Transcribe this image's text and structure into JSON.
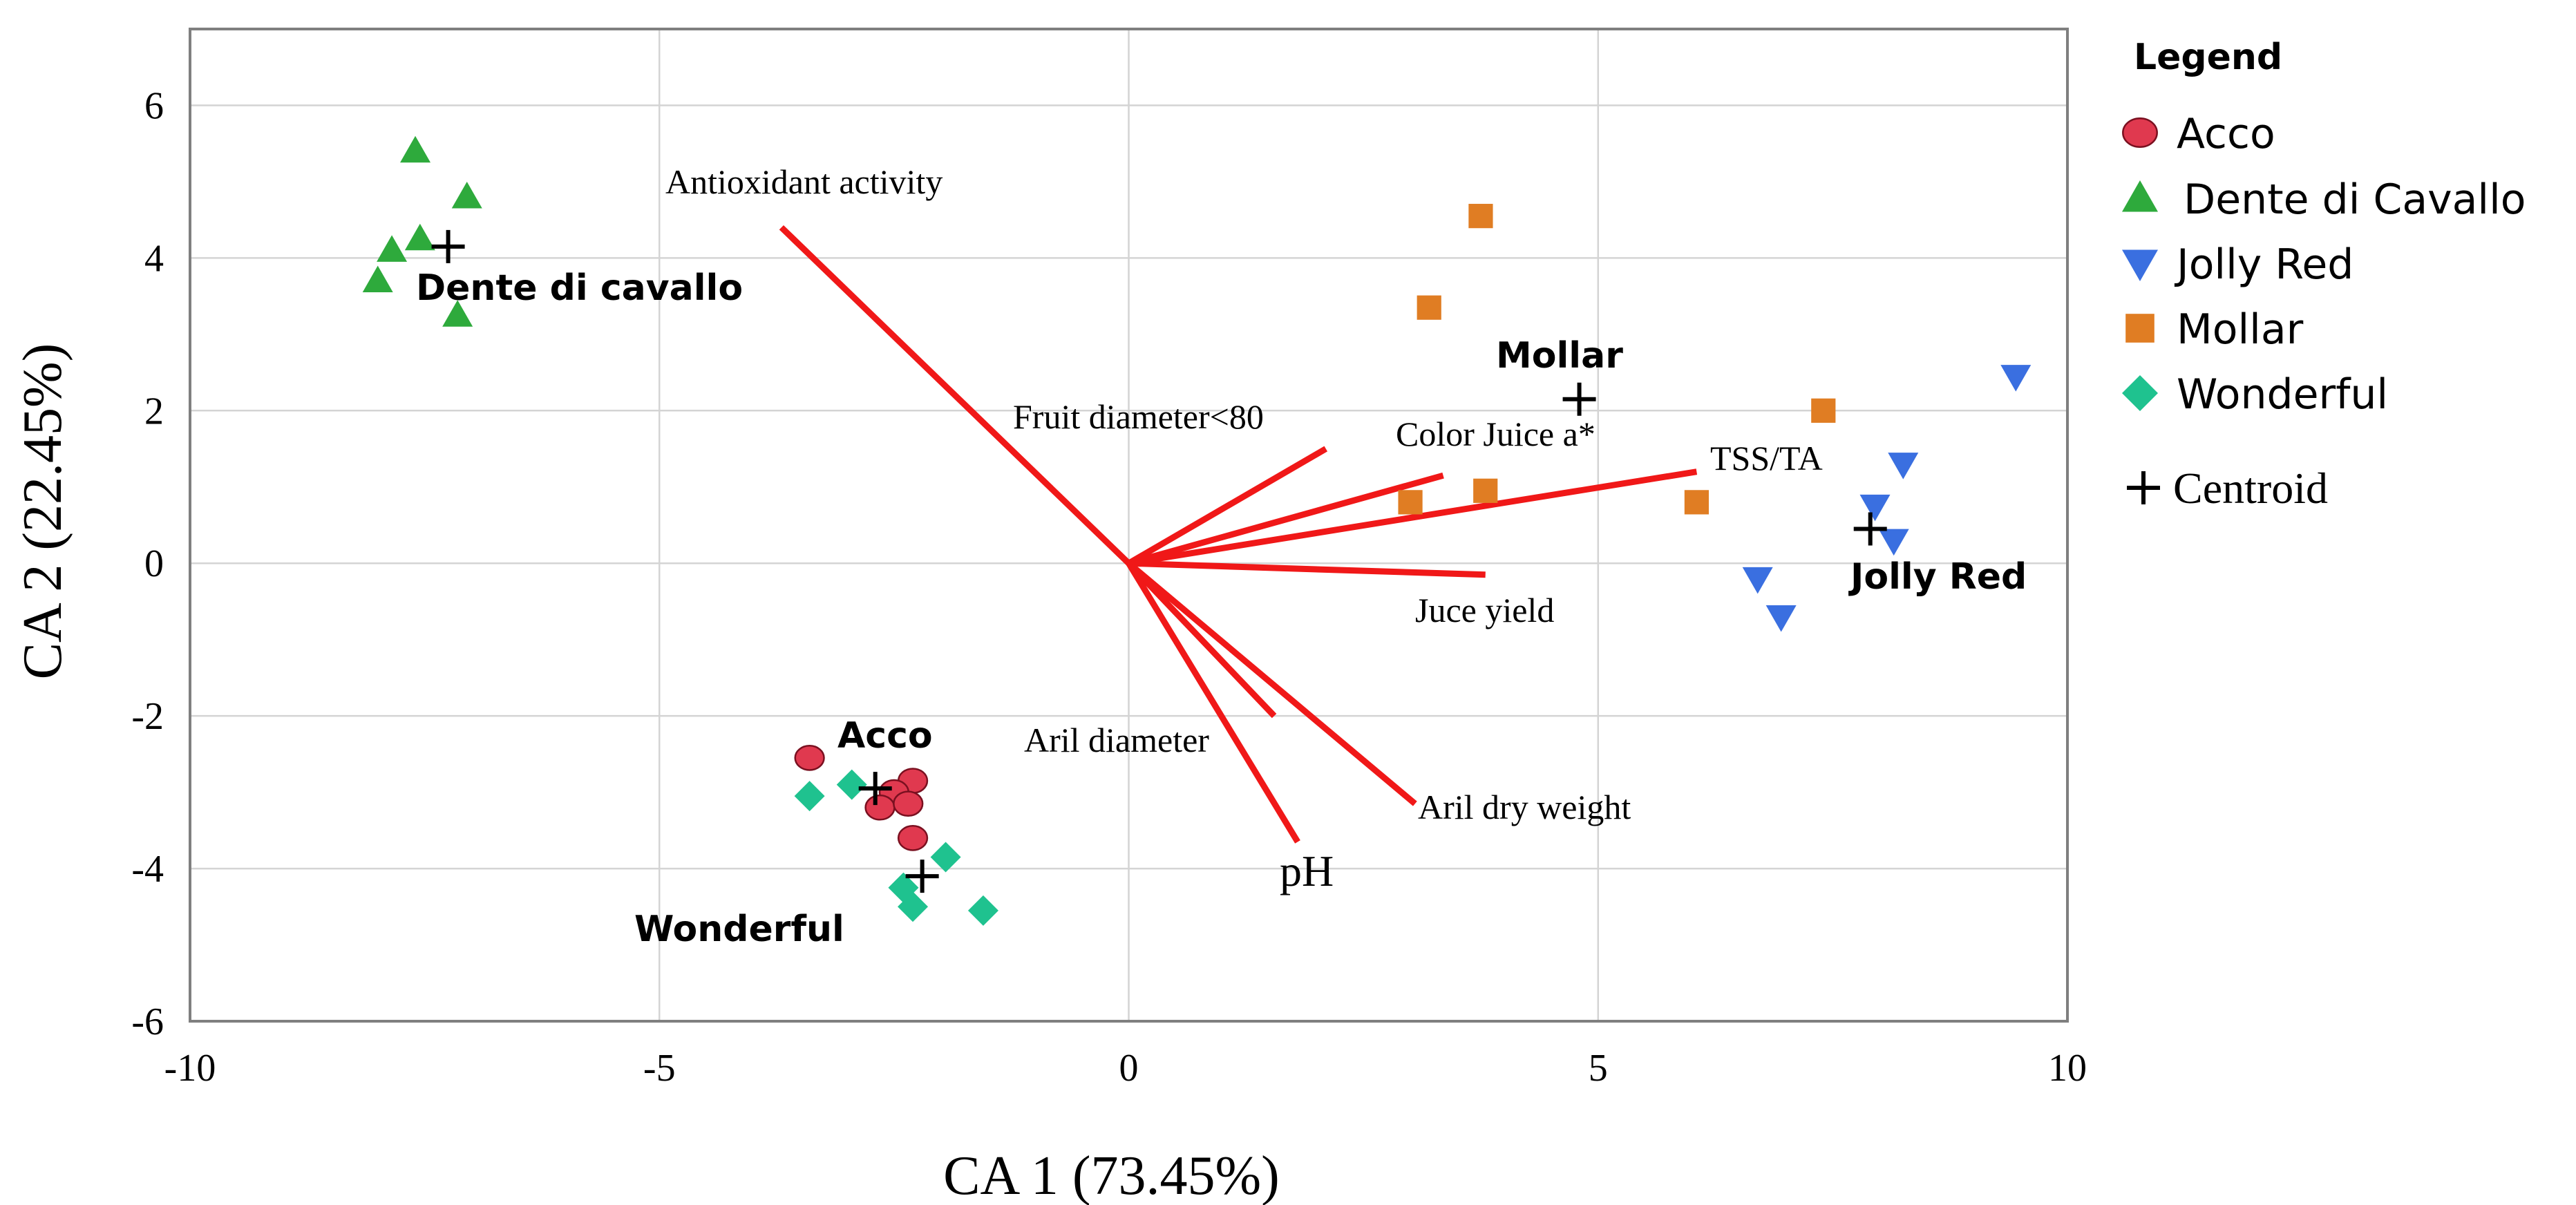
{
  "chart_data": {
    "type": "scatter",
    "xlabel": "CA 1 (73.45%)",
    "ylabel": "CA 2 (22.45%)",
    "xlim": [
      -10,
      10
    ],
    "ylim": [
      -6,
      7
    ],
    "xticks": [
      -10,
      -5,
      0,
      5,
      10
    ],
    "yticks": [
      -6,
      -4,
      -2,
      0,
      2,
      4,
      6
    ],
    "grid": true,
    "legend": {
      "title": "Legend",
      "placement": "right",
      "centroid_label": "Centroid"
    },
    "series": [
      {
        "name": "Acco",
        "marker": "circle",
        "color": "#e0394f",
        "points": [
          [
            -3.4,
            -2.55
          ],
          [
            -2.3,
            -2.85
          ],
          [
            -2.5,
            -3.0
          ],
          [
            -2.65,
            -3.2
          ],
          [
            -2.35,
            -3.15
          ],
          [
            -2.3,
            -3.6
          ]
        ],
        "centroid": [
          -2.7,
          -2.95
        ],
        "group_label": "Acco"
      },
      {
        "name": "Dente di Cavallo",
        "marker": "triangle-up",
        "color": "#2eaa3c",
        "points": [
          [
            -7.6,
            5.4
          ],
          [
            -7.05,
            4.8
          ],
          [
            -7.55,
            4.25
          ],
          [
            -7.85,
            4.1
          ],
          [
            -8.0,
            3.7
          ],
          [
            -7.15,
            3.25
          ]
        ],
        "centroid": [
          -7.25,
          4.15
        ],
        "group_label": "Dente di cavallo"
      },
      {
        "name": "Jolly Red",
        "marker": "triangle-down",
        "color": "#3a6fe0",
        "points": [
          [
            9.45,
            2.45
          ],
          [
            8.25,
            1.3
          ],
          [
            7.95,
            0.75
          ],
          [
            8.15,
            0.3
          ],
          [
            6.7,
            -0.2
          ],
          [
            6.95,
            -0.7
          ]
        ],
        "centroid": [
          7.9,
          0.45
        ],
        "group_label": "Jolly Red"
      },
      {
        "name": "Mollar",
        "marker": "square",
        "color": "#e07d23",
        "points": [
          [
            3.75,
            4.55
          ],
          [
            3.2,
            3.35
          ],
          [
            7.4,
            2.0
          ],
          [
            3.8,
            0.95
          ],
          [
            3.0,
            0.8
          ],
          [
            6.05,
            0.8
          ]
        ],
        "centroid": [
          4.8,
          2.15
        ],
        "group_label": "Mollar"
      },
      {
        "name": "Wonderful",
        "marker": "diamond",
        "color": "#1fc28f",
        "points": [
          [
            -2.95,
            -2.9
          ],
          [
            -3.4,
            -3.05
          ],
          [
            -1.95,
            -3.85
          ],
          [
            -2.4,
            -4.25
          ],
          [
            -2.3,
            -4.5
          ],
          [
            -1.55,
            -4.55
          ]
        ],
        "centroid": [
          -2.2,
          -4.1
        ],
        "group_label": "Wonderful"
      }
    ],
    "vectors": [
      {
        "label": "Antioxidant activity",
        "end": [
          -3.7,
          4.4
        ]
      },
      {
        "label": "Fruit diameter<80",
        "end": [
          2.1,
          1.5
        ]
      },
      {
        "label": "Color Juice  a*",
        "end": [
          3.35,
          1.15
        ]
      },
      {
        "label": "TSS/TA",
        "end": [
          6.05,
          1.2
        ]
      },
      {
        "label": "Juce yield",
        "end": [
          3.8,
          -0.15
        ]
      },
      {
        "label": "Aril  diameter",
        "end": [
          1.55,
          -2.0
        ]
      },
      {
        "label": "Aril dry weight",
        "end": [
          3.05,
          -3.15
        ]
      },
      {
        "label": "pH",
        "end": [
          1.8,
          -3.65
        ]
      }
    ],
    "colors": {
      "vector": "#f01818",
      "grid": "#d4d4d4",
      "frame": "#7f7f7f"
    }
  }
}
